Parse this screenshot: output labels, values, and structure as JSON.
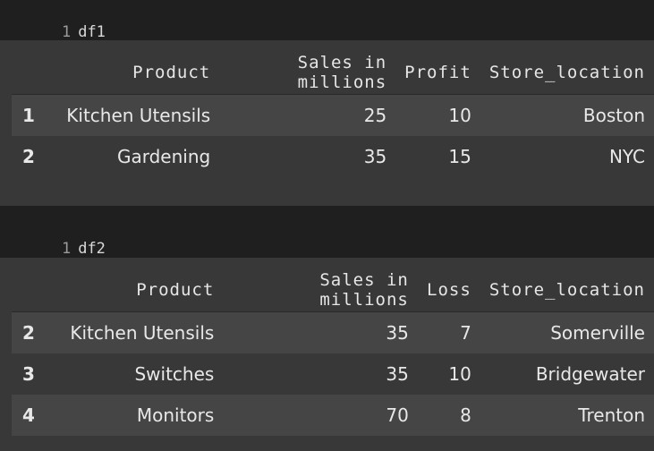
{
  "cell1": {
    "line_no": "1",
    "code": "df1",
    "columns": [
      "Product",
      "Sales in millions",
      "Profit",
      "Store_location"
    ],
    "rows": [
      {
        "index": "1",
        "cells": [
          "Kitchen Utensils",
          "25",
          "10",
          "Boston"
        ]
      },
      {
        "index": "2",
        "cells": [
          "Gardening",
          "35",
          "15",
          "NYC"
        ]
      }
    ]
  },
  "cell2": {
    "line_no": "1",
    "code": "df2",
    "columns": [
      "Product",
      "Sales in millions",
      "Loss",
      "Store_location"
    ],
    "rows": [
      {
        "index": "2",
        "cells": [
          "Kitchen Utensils",
          "35",
          "7",
          "Somerville"
        ]
      },
      {
        "index": "3",
        "cells": [
          "Switches",
          "35",
          "10",
          "Bridgewater"
        ]
      },
      {
        "index": "4",
        "cells": [
          "Monitors",
          "70",
          "8",
          "Trenton"
        ]
      }
    ]
  }
}
